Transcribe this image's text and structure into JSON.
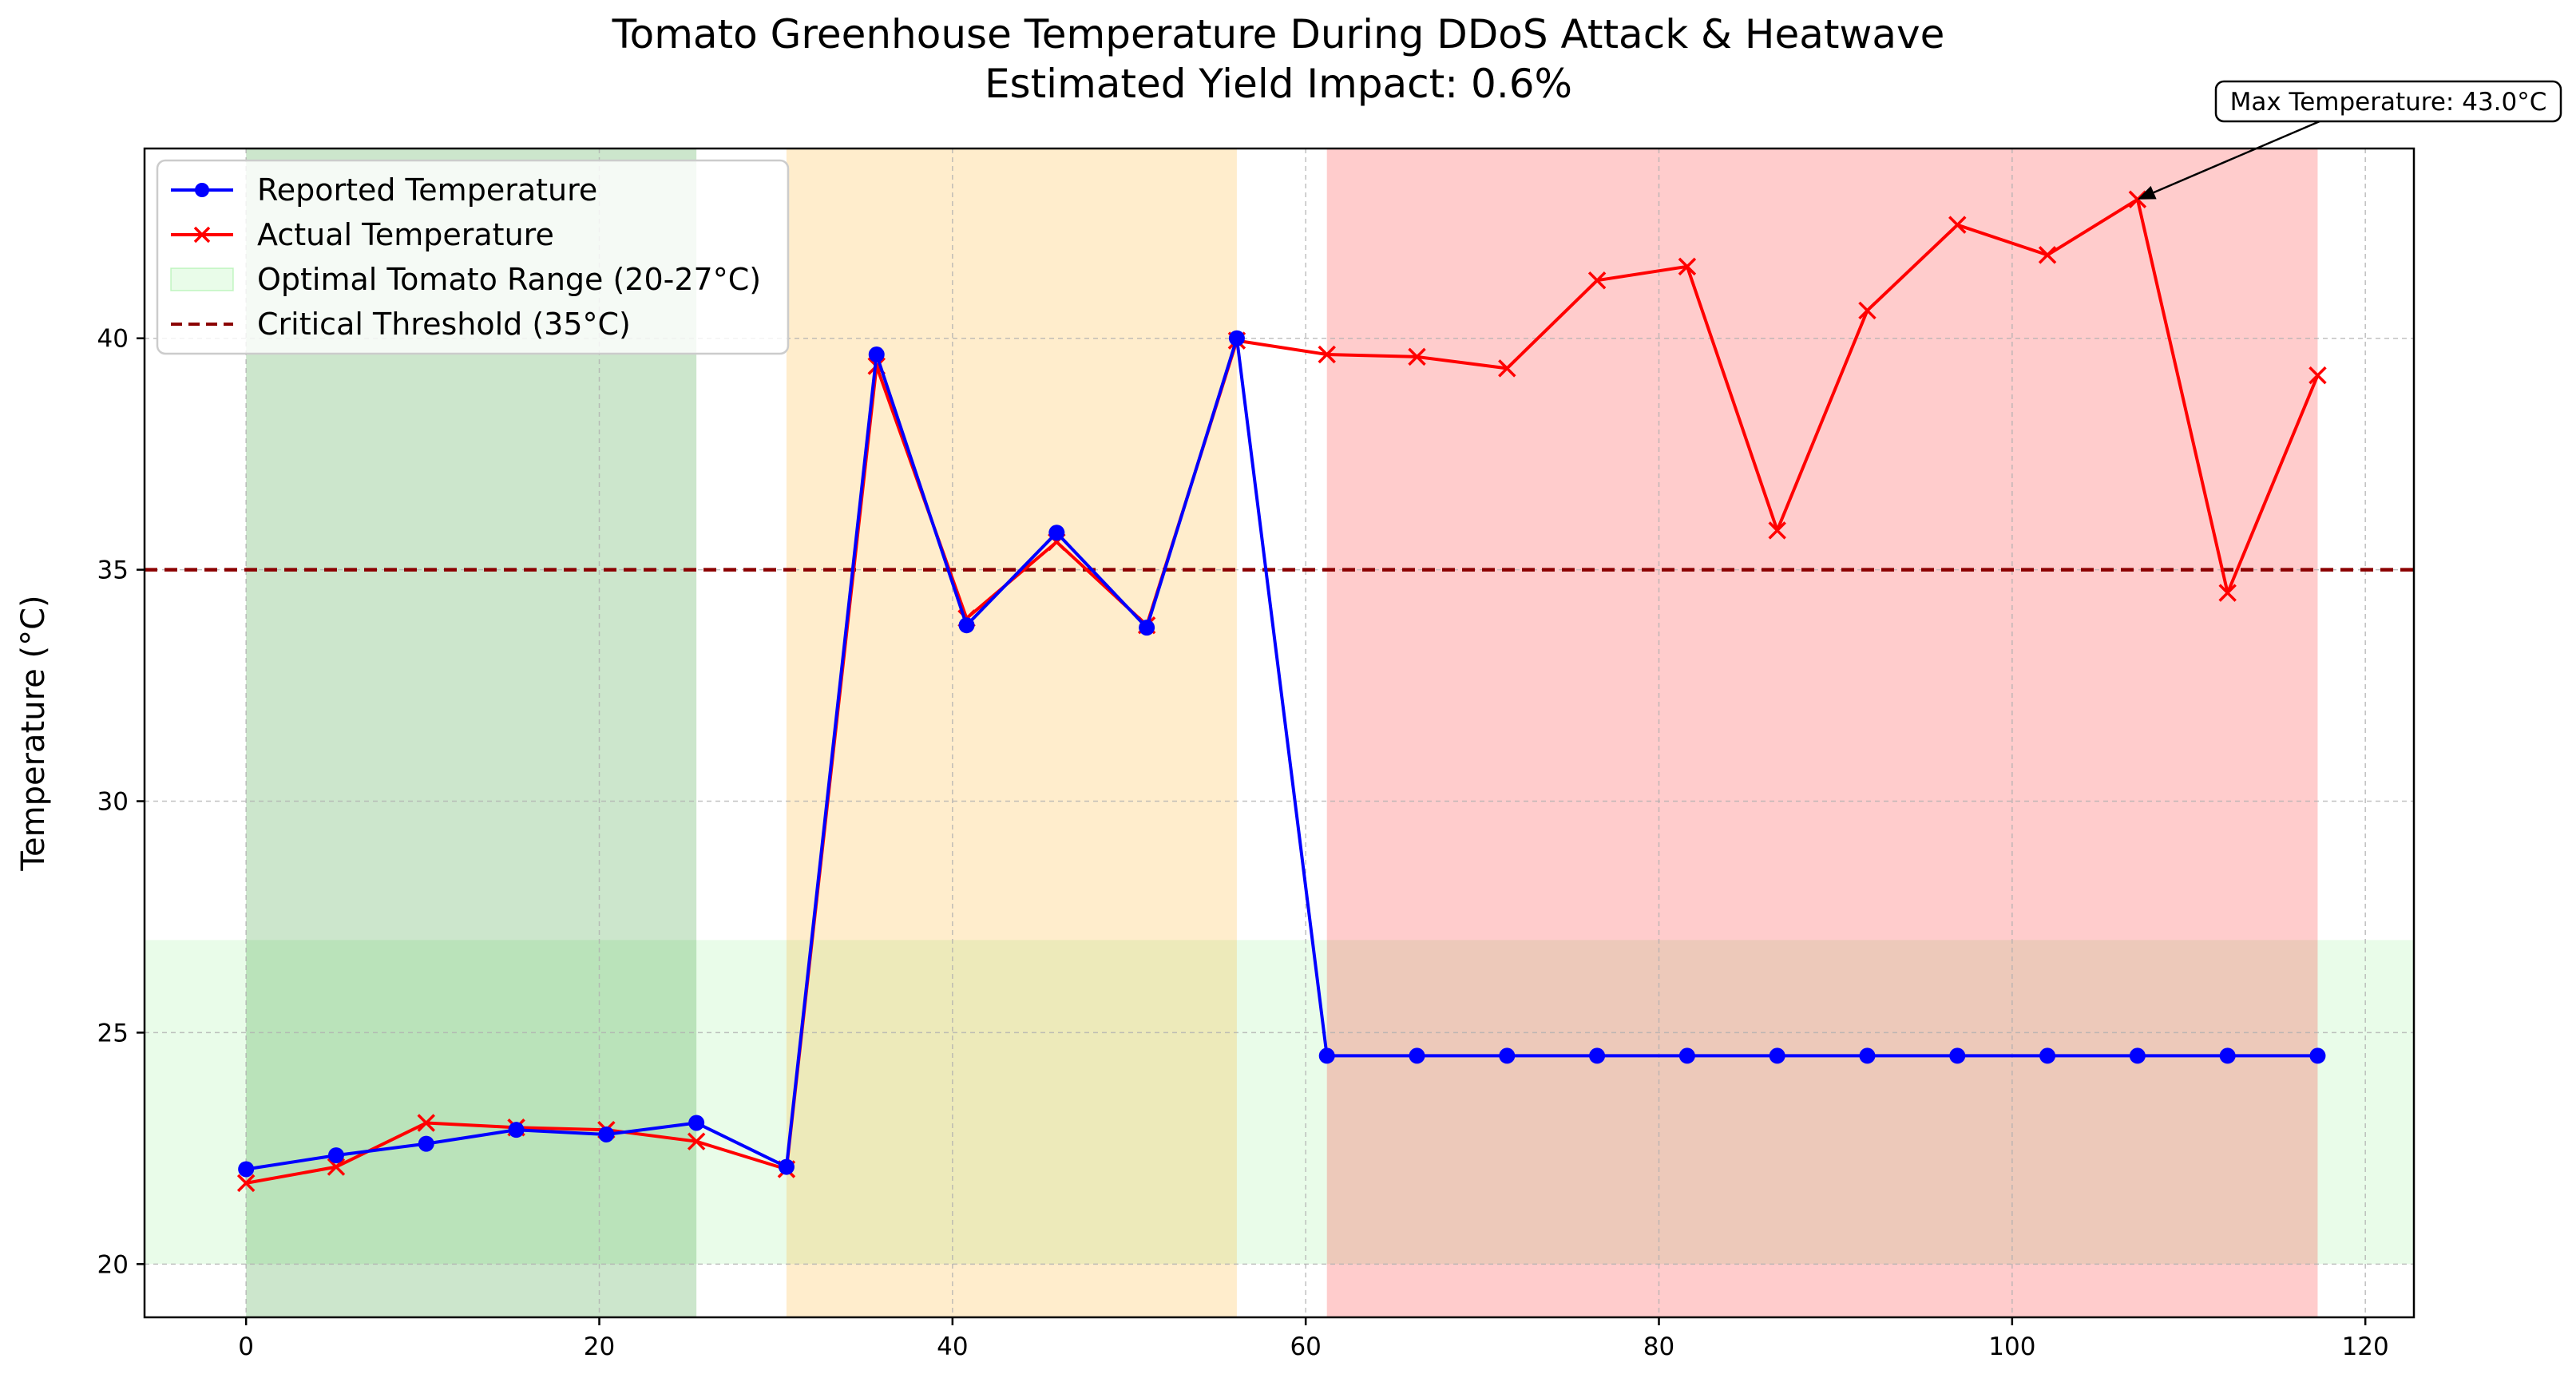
{
  "chart_data": {
    "type": "line",
    "title": "Tomato Greenhouse Temperature During DDoS Attack & Heatwave",
    "subtitle": "Estimated Yield Impact: 0.6%",
    "xlabel": "",
    "ylabel": "Temperature (°C)",
    "xlim": [
      -5.75,
      122.75
    ],
    "ylim": [
      18.85,
      44.1
    ],
    "xticks": [
      0,
      20,
      40,
      60,
      80,
      100,
      120
    ],
    "yticks": [
      20,
      25,
      30,
      35,
      40
    ],
    "grid": true,
    "legend_position": "upper-left",
    "x": [
      0,
      5.1,
      10.2,
      15.3,
      20.4,
      25.5,
      30.6,
      35.7,
      40.8,
      45.9,
      51.0,
      56.1,
      61.2,
      66.3,
      71.4,
      76.5,
      81.6,
      86.7,
      91.8,
      96.9,
      102.0,
      107.1,
      112.2,
      117.3
    ],
    "series": [
      {
        "name": "Reported Temperature",
        "color": "#0000ff",
        "marker": "circle",
        "values": [
          22.05,
          22.35,
          22.6,
          22.9,
          22.8,
          23.05,
          22.1,
          39.65,
          33.8,
          35.8,
          33.75,
          40.0,
          24.5,
          24.5,
          24.5,
          24.5,
          24.5,
          24.5,
          24.5,
          24.5,
          24.5,
          24.5,
          24.5,
          24.5
        ]
      },
      {
        "name": "Actual Temperature",
        "color": "#ff0000",
        "marker": "x",
        "values": [
          21.75,
          22.1,
          23.05,
          22.95,
          22.9,
          22.65,
          22.05,
          39.4,
          33.95,
          35.6,
          33.8,
          39.95,
          39.65,
          39.6,
          39.35,
          41.25,
          41.55,
          35.85,
          40.6,
          42.45,
          41.8,
          43.0,
          34.5,
          39.2
        ]
      }
    ],
    "bands": [
      {
        "name": "Optimal Tomato Range (20-27°C)",
        "axis": "y",
        "from": 20,
        "to": 27,
        "color": "#90ee90",
        "opacity": 0.2
      },
      {
        "axis": "x",
        "from": 0,
        "to": 25.5,
        "color": "#008000",
        "opacity": 0.2
      },
      {
        "axis": "x",
        "from": 30.6,
        "to": 56.1,
        "color": "#ffa500",
        "opacity": 0.2
      },
      {
        "axis": "x",
        "from": 61.2,
        "to": 117.3,
        "color": "#ff0000",
        "opacity": 0.2
      }
    ],
    "threshold": {
      "name": "Critical Threshold (35°C)",
      "value": 35,
      "color": "#8b0000"
    },
    "annotation": {
      "text": "Max Temperature: 43.0°C",
      "x": 107.1,
      "y": 43.0
    }
  }
}
